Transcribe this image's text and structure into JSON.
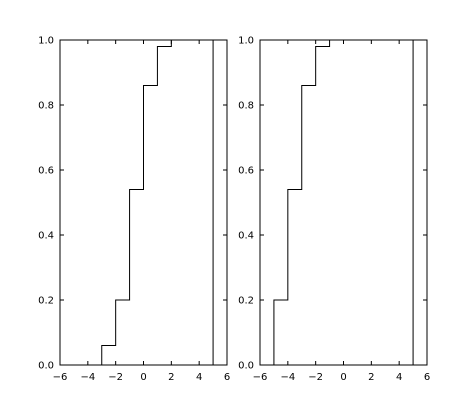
{
  "chart_data": [
    {
      "type": "line",
      "drawstyle": "steps-post",
      "xlim": [
        -6,
        6
      ],
      "ylim": [
        0,
        1
      ],
      "xticks": [
        "−6",
        "−4",
        "−2",
        "0",
        "2",
        "4",
        "6"
      ],
      "yticks": [
        "0.0",
        "0.2",
        "0.4",
        "0.6",
        "0.8",
        "1.0"
      ],
      "grid": false,
      "series": [
        {
          "x": [
            -5,
            -3,
            -2,
            -1,
            0,
            1,
            2,
            5,
            5
          ],
          "y": [
            0.0,
            0.06,
            0.2,
            0.54,
            0.86,
            0.98,
            1.0,
            1.0,
            0.0
          ]
        }
      ]
    },
    {
      "type": "line",
      "drawstyle": "steps-pre",
      "xlim": [
        -6,
        6
      ],
      "ylim": [
        0,
        1
      ],
      "xticks": [
        "−6",
        "−4",
        "−2",
        "0",
        "2",
        "4",
        "6"
      ],
      "yticks": [
        "0.0",
        "0.2",
        "0.4",
        "0.6",
        "0.8",
        "1.0"
      ],
      "grid": false,
      "series": [
        {
          "x": [
            -5,
            -5,
            -4,
            -3,
            -2,
            -1,
            0,
            5,
            5
          ],
          "y": [
            0.0,
            0.06,
            0.2,
            0.54,
            0.86,
            0.98,
            1.0,
            1.0,
            0.0
          ]
        }
      ]
    }
  ]
}
